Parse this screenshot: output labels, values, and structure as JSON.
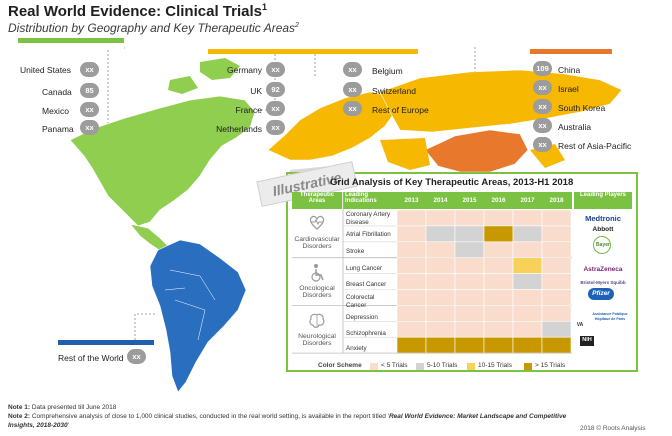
{
  "header": {
    "title": "Real World Evidence: Clinical Trials",
    "title_sup": "1",
    "subtitle": "Distribution by Geography and Key Therapeutic Areas",
    "subtitle_sup": "2"
  },
  "colors": {
    "north_america": "#7bc142",
    "europe": "#f6b800",
    "asia_pacific": "#e8782b",
    "south_america": "#1f5fae",
    "badge": "#9c9c9c"
  },
  "regions": {
    "americas": [
      {
        "name": "United States",
        "value": "xx"
      },
      {
        "name": "Canada",
        "value": "85"
      },
      {
        "name": "Mexico",
        "value": "xx"
      },
      {
        "name": "Panama",
        "value": "xx"
      }
    ],
    "europe_left": [
      {
        "name": "Germany",
        "value": "xx"
      },
      {
        "name": "UK",
        "value": "92"
      },
      {
        "name": "France",
        "value": "xx"
      },
      {
        "name": "Netherlands",
        "value": "xx"
      }
    ],
    "europe_right": [
      {
        "name": "Belgium",
        "value": "xx"
      },
      {
        "name": "Switzerland",
        "value": "xx"
      },
      {
        "name": "Rest of Europe",
        "value": "xx"
      }
    ],
    "asia_pacific": [
      {
        "name": "China",
        "value": "109"
      },
      {
        "name": "Israel",
        "value": "xx"
      },
      {
        "name": "South Korea",
        "value": "xx"
      },
      {
        "name": "Australia",
        "value": "xx"
      },
      {
        "name": "Rest of Asia-Pacific",
        "value": "xx"
      }
    ],
    "rest_of_world": {
      "name": "Rest of the World",
      "value": "xx"
    }
  },
  "watermark": "Illustrative",
  "grid": {
    "title": "Grid Analysis of Key Therapeutic Areas, 2013-H1 2018",
    "col_headers": {
      "area": "Therapeutic Areas",
      "indication": "Leading Indications",
      "players": "Leading Players"
    },
    "years": [
      "2013",
      "2014",
      "2015",
      "2016",
      "2017",
      "2018"
    ],
    "areas": [
      {
        "name": "Cardiovascular Disorders",
        "icon": "heart-icon",
        "indications": [
          {
            "name": "Coronary Artery Disease",
            "levels": [
              0,
              0,
              0,
              0,
              0,
              0
            ]
          },
          {
            "name": "Atrial Fibrillation",
            "levels": [
              0,
              1,
              1,
              3,
              1,
              0
            ]
          },
          {
            "name": "Stroke",
            "levels": [
              0,
              0,
              1,
              0,
              0,
              0
            ]
          }
        ],
        "players": [
          "Medtronic",
          "Abbott",
          "Bayer"
        ]
      },
      {
        "name": "Oncological Disorders",
        "icon": "wheelchair-icon",
        "indications": [
          {
            "name": "Lung Cancer",
            "levels": [
              0,
              0,
              0,
              0,
              2,
              0
            ]
          },
          {
            "name": "Breast Cancer",
            "levels": [
              0,
              0,
              0,
              0,
              1,
              0
            ]
          },
          {
            "name": "Colorectal Cancer",
            "levels": [
              0,
              0,
              0,
              0,
              0,
              0
            ]
          }
        ],
        "players": [
          "AstraZeneca",
          "Bristol-Myers Squibb",
          "Pfizer"
        ]
      },
      {
        "name": "Neurological Disorders",
        "icon": "brain-icon",
        "indications": [
          {
            "name": "Depression",
            "levels": [
              0,
              0,
              0,
              0,
              0,
              0
            ]
          },
          {
            "name": "Schizophrenia",
            "levels": [
              0,
              0,
              0,
              0,
              0,
              1
            ]
          },
          {
            "name": "Anxiety",
            "levels": [
              3,
              3,
              3,
              3,
              3,
              3
            ]
          }
        ],
        "players": [
          "Assistance Publique Hôpitaux de Paris",
          "VA",
          "NIH"
        ]
      }
    ],
    "legend": {
      "label": "Color Scheme",
      "items": [
        {
          "label": "< 5 Trials",
          "color": "#f9dccc"
        },
        {
          "label": "5-10 Trials",
          "color": "#d3d3d3"
        },
        {
          "label": "10-15 Trials",
          "color": "#f6d25a"
        },
        {
          "label": "> 15 Trials",
          "color": "#c89800"
        }
      ]
    }
  },
  "notes": {
    "note1_label": "Note 1:",
    "note1": "Data presented till June 2018",
    "note2_label": "Note 2:",
    "note2_a": "Comprehensive analysis of close to 1,000 clinical studies, conducted in the real world setting, is available in the report titled '",
    "note2_b": "Real World Evidence: Market Landscape and Competitive",
    "note2_c": "Insights, 2018-2030",
    "note2_d": "'"
  },
  "copyright": "2018 © Roots Analysis"
}
